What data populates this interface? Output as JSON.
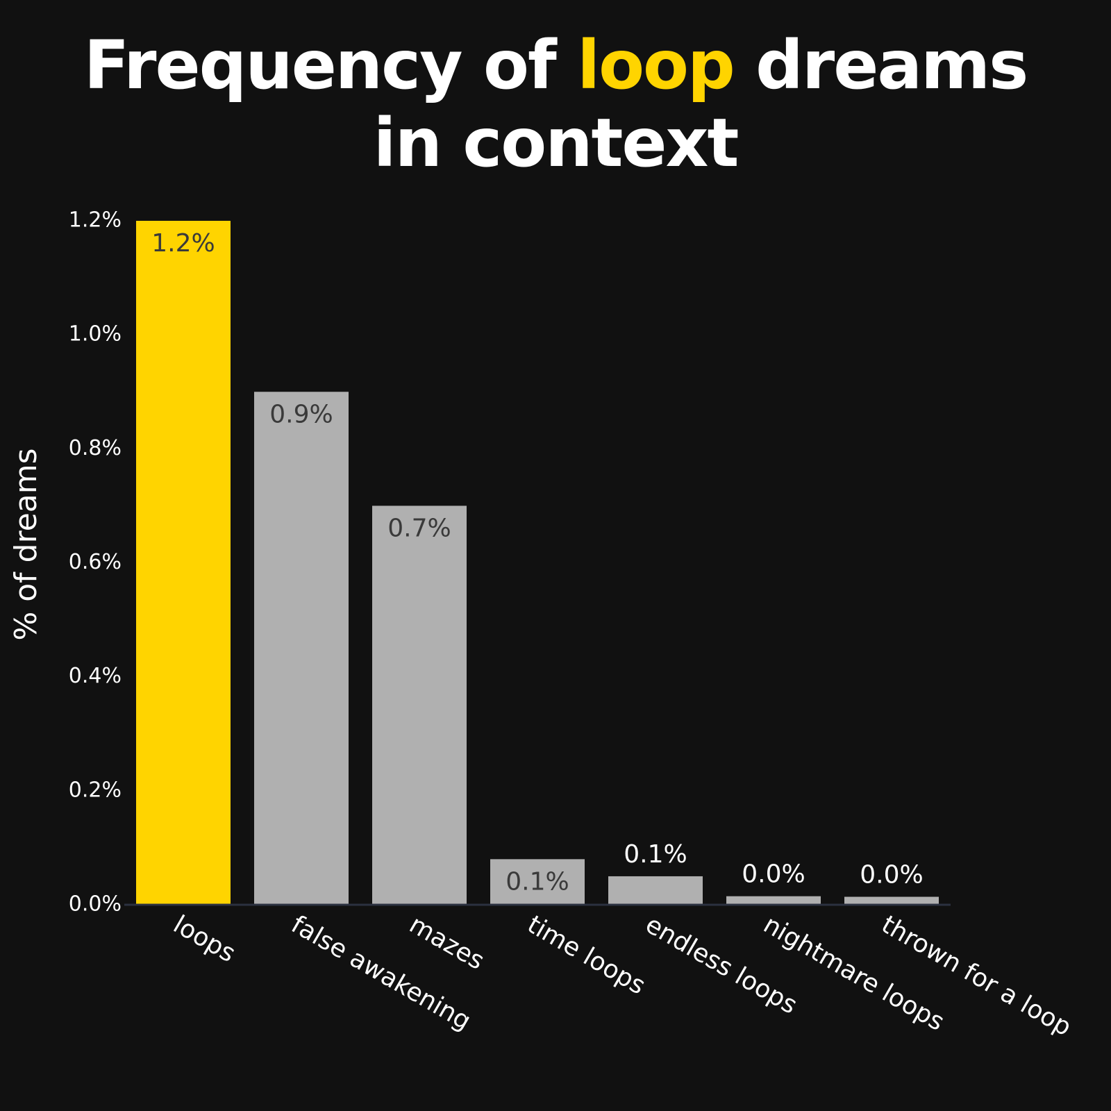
{
  "chart_data": {
    "type": "bar",
    "title": [
      "Frequency of loop dreams",
      "in context"
    ],
    "title_highlight": {
      "text": "loop",
      "color": "#ffd400"
    },
    "y_label": "% of dreams",
    "categories": [
      "loops",
      "false awakening",
      "mazes",
      "time loops",
      "endless loops",
      "nightmare loops",
      "thrown for a loop"
    ],
    "values": [
      1.2,
      0.9,
      0.7,
      0.08,
      0.05,
      0.015,
      0.014
    ],
    "value_labels": [
      "1.2%",
      "0.9%",
      "0.7%",
      "0.1%",
      "0.1%",
      "0.0%",
      "0.0%"
    ],
    "colors": [
      "#ffd400",
      "#b0b0b0",
      "#b0b0b0",
      "#b0b0b0",
      "#b0b0b0",
      "#b0b0b0",
      "#b0b0b0"
    ],
    "ylim": [
      0,
      1.2
    ],
    "yticks": [
      {
        "value": 0,
        "label": "0.0%"
      },
      {
        "value": 0.2,
        "label": "0.2%"
      },
      {
        "value": 0.4,
        "label": "0.4%"
      },
      {
        "value": 0.6,
        "label": "0.6%"
      },
      {
        "value": 0.8,
        "label": "0.8%"
      },
      {
        "value": 1.0,
        "label": "1.0%"
      },
      {
        "value": 1.2,
        "label": "1.2%"
      }
    ],
    "grid": false
  }
}
